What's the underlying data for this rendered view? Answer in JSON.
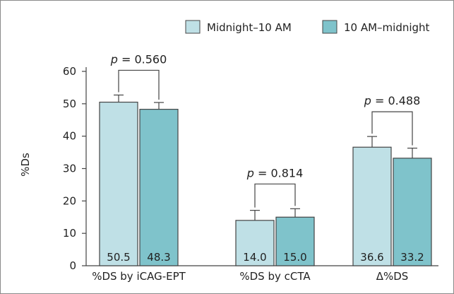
{
  "chart_data": {
    "type": "bar",
    "categories": [
      "%DS by iCAG-EPT",
      "%DS by cCTA",
      "Δ%DS"
    ],
    "series": [
      {
        "name": "Midnight–10 AM",
        "values": [
          50.5,
          14.0,
          36.6
        ],
        "errors": [
          2.2,
          3.1,
          3.3
        ],
        "labels": [
          "50.5",
          "14.0",
          "36.6"
        ]
      },
      {
        "name": "10 AM–midnight",
        "values": [
          48.3,
          15.0,
          33.2
        ],
        "errors": [
          2.1,
          2.6,
          3.1
        ],
        "labels": [
          "48.3",
          "15.0",
          "33.2"
        ]
      }
    ],
    "ylabel": "%Ds",
    "ylim": [
      0,
      60
    ],
    "yticks": [
      "0",
      "10",
      "20",
      "30",
      "40",
      "50",
      "60"
    ],
    "annotations": [
      {
        "prefix": "p",
        "text": " = 0.560",
        "category": 0
      },
      {
        "prefix": "p",
        "text": " = 0.814",
        "category": 1
      },
      {
        "prefix": "p",
        "text": " = 0.488",
        "category": 2
      }
    ],
    "legend_position": "top-right",
    "grid": false,
    "colors": {
      "Midnight–10 AM": "#bfe0e6",
      "10 AM–midnight": "#7fc3cb",
      "border": "#444444"
    }
  }
}
